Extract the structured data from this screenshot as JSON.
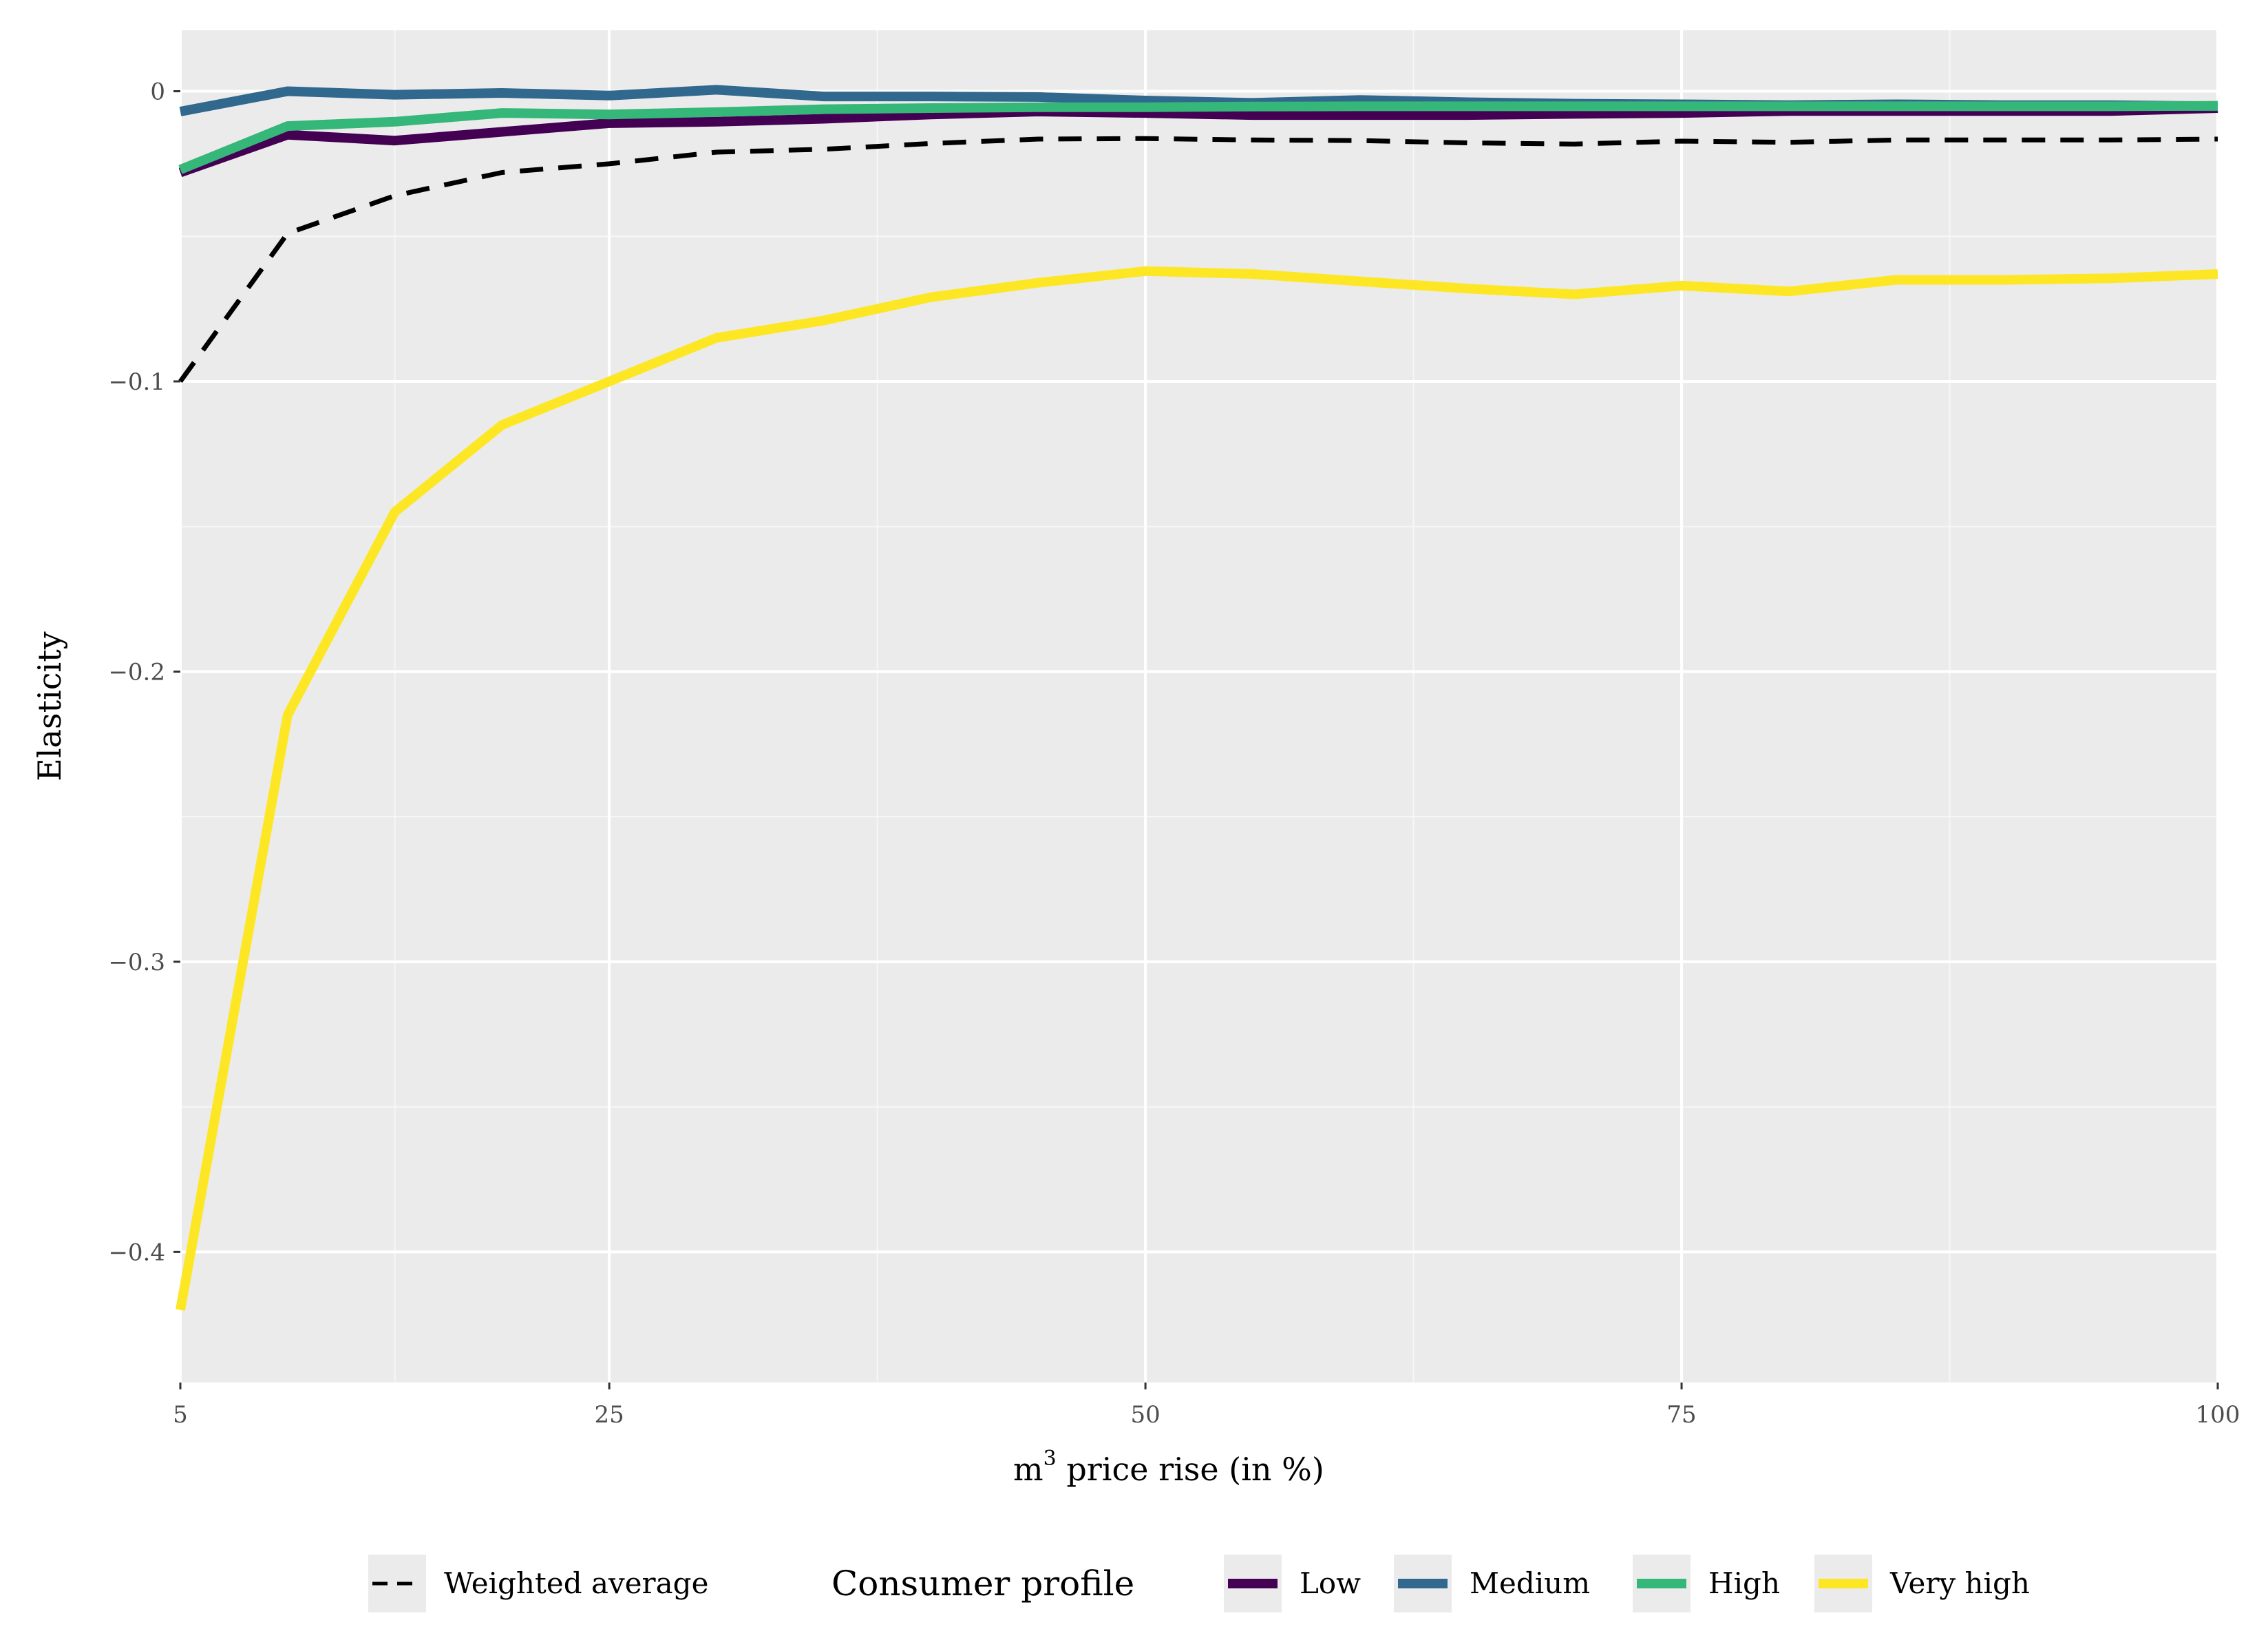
{
  "chart_data": {
    "type": "line",
    "title": "",
    "xlabel_main": "m",
    "xlabel_sup": "3",
    "xlabel_rest": " price rise (in %)",
    "ylabel": "Elasticity",
    "xlim": [
      5,
      100
    ],
    "ylim": [
      -0.445,
      0.021
    ],
    "x_ticks": [
      5,
      25,
      50,
      75,
      100
    ],
    "x_tick_labels": [
      "5",
      "25",
      "50",
      "75",
      "100"
    ],
    "x_minor": [
      15,
      37.5,
      62.5,
      87.5
    ],
    "y_ticks": [
      0,
      -0.1,
      -0.2,
      -0.3,
      -0.4
    ],
    "y_tick_labels": [
      "0",
      "−0.1",
      "−0.2",
      "−0.3",
      "−0.4"
    ],
    "y_minor": [
      -0.05,
      -0.15,
      -0.25,
      -0.35
    ],
    "grid": true,
    "legend_position": "bottom",
    "weighted_average": {
      "name": "Weighted average",
      "dashed": true,
      "color": "#000000",
      "x": [
        5,
        10,
        15,
        20,
        25,
        30,
        35,
        40,
        45,
        50,
        55,
        60,
        65,
        70,
        75,
        80,
        85,
        90,
        95,
        100
      ],
      "values": [
        -0.1,
        -0.049,
        -0.036,
        -0.028,
        -0.025,
        -0.021,
        -0.02,
        -0.018,
        -0.0165,
        -0.0163,
        -0.0168,
        -0.017,
        -0.0178,
        -0.0182,
        -0.0172,
        -0.0176,
        -0.0168,
        -0.0168,
        -0.0168,
        -0.0165
      ]
    },
    "legend_title": "Consumer profile",
    "series": [
      {
        "name": "Low",
        "color": "#440154",
        "x": [
          5,
          10,
          15,
          20,
          25,
          30,
          35,
          40,
          45,
          50,
          55,
          60,
          65,
          70,
          75,
          80,
          85,
          90,
          95,
          100
        ],
        "values": [
          -0.028,
          -0.015,
          -0.017,
          -0.014,
          -0.011,
          -0.0105,
          -0.0095,
          -0.008,
          -0.007,
          -0.0075,
          -0.0082,
          -0.0082,
          -0.0082,
          -0.0078,
          -0.0075,
          -0.0068,
          -0.0068,
          -0.0068,
          -0.0068,
          -0.0058
        ]
      },
      {
        "name": "Medium",
        "color": "#31688e",
        "x": [
          5,
          10,
          15,
          20,
          25,
          30,
          35,
          40,
          45,
          50,
          55,
          60,
          65,
          70,
          75,
          80,
          85,
          90,
          95,
          100
        ],
        "values": [
          -0.007,
          0.0,
          -0.0012,
          -0.0006,
          -0.0015,
          0.0005,
          -0.0018,
          -0.0018,
          -0.002,
          -0.0032,
          -0.004,
          -0.003,
          -0.0038,
          -0.0043,
          -0.0045,
          -0.0048,
          -0.0045,
          -0.0048,
          -0.0048,
          -0.0052
        ]
      },
      {
        "name": "High",
        "color": "#35b779",
        "x": [
          5,
          10,
          15,
          20,
          25,
          30,
          35,
          40,
          45,
          50,
          55,
          60,
          65,
          70,
          75,
          80,
          85,
          90,
          95,
          100
        ],
        "values": [
          -0.027,
          -0.012,
          -0.0105,
          -0.0075,
          -0.008,
          -0.0072,
          -0.0062,
          -0.0058,
          -0.0055,
          -0.0055,
          -0.0053,
          -0.0052,
          -0.0052,
          -0.0052,
          -0.0052,
          -0.0052,
          -0.0052,
          -0.0052,
          -0.0052,
          -0.005
        ]
      },
      {
        "name": "Very high",
        "color": "#fde725",
        "x": [
          5,
          10,
          15,
          20,
          25,
          30,
          35,
          40,
          45,
          50,
          55,
          60,
          65,
          70,
          75,
          80,
          85,
          90,
          95,
          100
        ],
        "values": [
          -0.42,
          -0.215,
          -0.145,
          -0.115,
          -0.1,
          -0.085,
          -0.079,
          -0.071,
          -0.066,
          -0.062,
          -0.063,
          -0.0655,
          -0.068,
          -0.07,
          -0.067,
          -0.069,
          -0.065,
          -0.065,
          -0.0645,
          -0.063
        ]
      }
    ]
  }
}
